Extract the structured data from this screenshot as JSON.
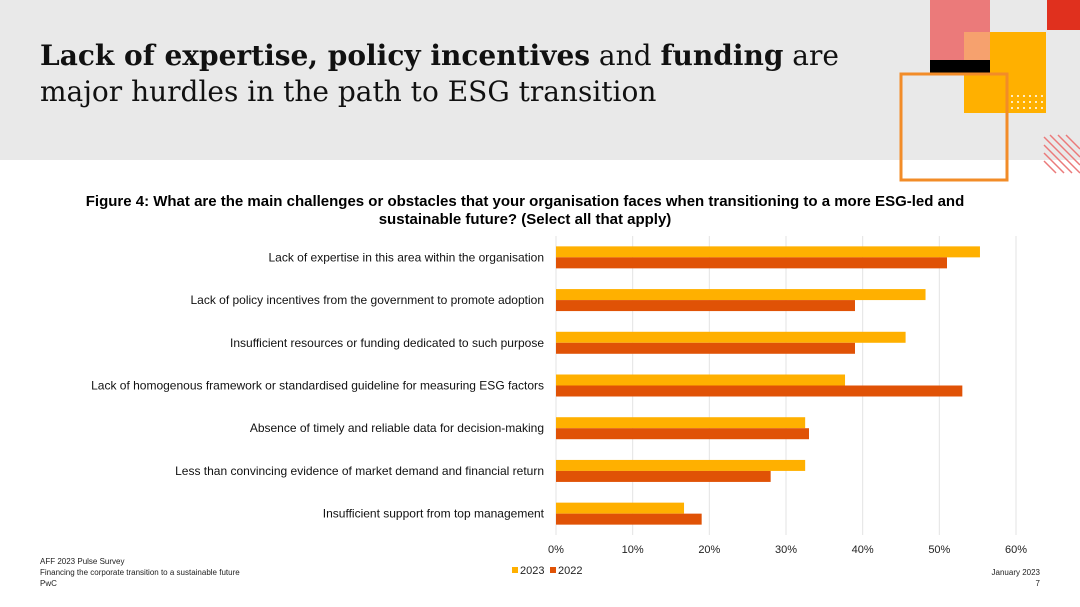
{
  "headline": {
    "segments": [
      {
        "text": "Lack of expertise, policy incentives",
        "bold": true
      },
      {
        "text": " and ",
        "bold": false
      },
      {
        "text": "funding",
        "bold": true
      },
      {
        "text": " are major hurdles in the path to ESG transition",
        "bold": false
      }
    ]
  },
  "colors": {
    "header_bg": "#e9e9e9",
    "series_2023": "#ffb000",
    "series_2022": "#e05206",
    "deco_pink": "#eb7a7a",
    "deco_red": "#e0301e",
    "deco_orange": "#f28c28"
  },
  "chart_data": {
    "type": "bar",
    "orientation": "horizontal",
    "title": "Figure 4: What are the main challenges or obstacles that your organisation faces when transitioning to a more ESG-led and sustainable future? (Select all that apply)",
    "categories": [
      "Lack of expertise in this area within the organisation",
      "Lack of policy incentives from the government to promote adoption",
      "Insufficient resources or funding dedicated to such purpose",
      "Lack of homogenous framework or standardised guideline for measuring ESG factors",
      "Absence of timely and reliable data for decision-making",
      "Less than convincing evidence of market demand and financial return",
      "Insufficient support from top management"
    ],
    "series": [
      {
        "name": "2023",
        "values": [
          55.3,
          48.2,
          45.6,
          37.7,
          32.5,
          32.5,
          16.7
        ]
      },
      {
        "name": "2022",
        "values": [
          51.0,
          39.0,
          39.0,
          53.0,
          33.0,
          28.0,
          19.0
        ]
      }
    ],
    "xlim": [
      0,
      60
    ],
    "xticks": [
      0,
      10,
      20,
      30,
      40,
      50,
      60
    ],
    "tick_suffix": "%",
    "grid": true,
    "legend_position": "bottom"
  },
  "footer": {
    "line1": "AFF 2023 Pulse Survey",
    "line2": "Financing the corporate transition to a sustainable future",
    "line3": "PwC",
    "date": "January 2023",
    "page": "7"
  }
}
